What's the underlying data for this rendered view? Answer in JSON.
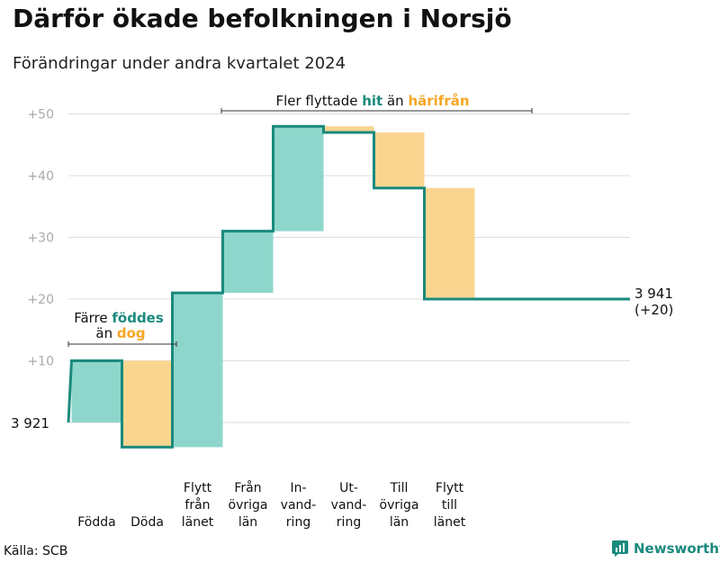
{
  "title": "Därför ökade befolkningen i Norsjö",
  "subtitle": "Förändringar under andra kvartalet 2024",
  "source": "Källa: SCB",
  "brand": "Newsworthy",
  "colors": {
    "increase": "#8ed6cb",
    "decrease": "#fad590",
    "line": "#1a8a7d",
    "grid": "#dddddd",
    "hit": "#1a8a7d",
    "harifran": "#f5a623"
  },
  "chart_data": {
    "type": "waterfall",
    "title": "Därför ökade befolkningen i Norsjö",
    "subtitle": "Förändringar under andra kvartalet 2024",
    "ylabel": "",
    "ylim": [
      -4,
      50
    ],
    "yticks": [
      10,
      20,
      30,
      40,
      50
    ],
    "ytick_labels": [
      "+10",
      "+20",
      "+30",
      "+40",
      "+50"
    ],
    "grid": true,
    "start_value": 3921,
    "start_label": "3 921",
    "end_value": 3941,
    "end_label": "3 941",
    "end_change_label": "(+20)",
    "steps": [
      {
        "label": [
          "Födda"
        ],
        "value": 10
      },
      {
        "label": [
          "Döda"
        ],
        "value": -14
      },
      {
        "label": [
          "Flytt",
          "från",
          "länet"
        ],
        "value": 25
      },
      {
        "label": [
          "Från",
          "övriga",
          "län"
        ],
        "value": 10
      },
      {
        "label": [
          "In-",
          "vand-",
          "ring"
        ],
        "value": 17
      },
      {
        "label": [
          "Ut-",
          "vand-",
          "ring"
        ],
        "value": -1
      },
      {
        "label": [
          "Till",
          "övriga",
          "län"
        ],
        "value": -9
      },
      {
        "label": [
          "Flytt",
          "till",
          "länet"
        ],
        "value": -18
      }
    ],
    "annotations": {
      "births": {
        "line1": "Färre ",
        "line1_em": "föddes",
        "line2": "än ",
        "line2_em": "dog"
      },
      "moves": {
        "pre": "Fler flyttade ",
        "em1": "hit",
        "mid": " än ",
        "em2": "härifrån"
      }
    }
  }
}
